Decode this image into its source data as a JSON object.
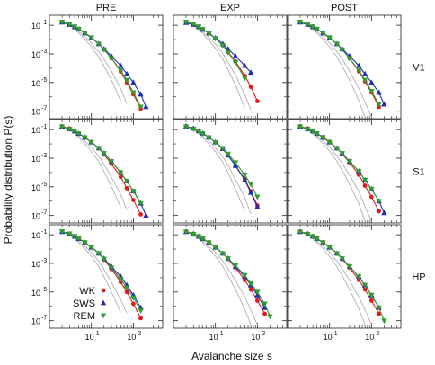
{
  "chart_data": {
    "type": "scatter",
    "layout": "3x3 grid of log-log panels",
    "column_titles": [
      "PRE",
      "EXP",
      "POST"
    ],
    "row_labels": [
      "V1",
      "S1",
      "HP"
    ],
    "xlabel": "Avalanche size s",
    "ylabel": "Probability distribution P(s)",
    "x_scale": "log",
    "y_scale": "log",
    "xlim": [
      1,
      500
    ],
    "ylim": [
      3e-08,
      0.5
    ],
    "x_ticks": [
      {
        "value": 10,
        "label": "10",
        "exp": "1"
      },
      {
        "value": 100,
        "label": "10",
        "exp": "2"
      }
    ],
    "y_ticks": [
      {
        "value": 0.1,
        "label": "10",
        "exp": "-1"
      },
      {
        "value": 0.001,
        "label": "10",
        "exp": "-3"
      },
      {
        "value": 1e-05,
        "label": "10",
        "exp": "-5"
      },
      {
        "value": 1e-07,
        "label": "10",
        "exp": "-7"
      }
    ],
    "x": [
      2,
      3,
      4,
      5,
      7,
      10,
      15,
      20,
      30,
      50,
      70,
      100,
      150,
      200
    ],
    "legend": {
      "placement": "bottom-left of HP / PRE panel",
      "entries": [
        {
          "name": "WK",
          "color": "#e41a1c",
          "marker": "circle"
        },
        {
          "name": "SWS",
          "color": "#1f2fb0",
          "marker": "triangle-up"
        },
        {
          "name": "REM",
          "color": "#2e9e2e",
          "marker": "triangle-down"
        }
      ]
    },
    "fit_line_colors": {
      "WK": "#e41a1c",
      "SWS": "#1f2fb0",
      "REM": "#2e9e2e",
      "surrogate": "#b0b0b0"
    },
    "panels": [
      {
        "row": "V1",
        "col": "PRE",
        "series": [
          {
            "name": "WK",
            "values": [
              0.17,
              0.12,
              0.08,
              0.055,
              0.03,
              0.014,
              0.005,
              0.002,
              0.0005,
              6e-05,
              1e-05,
              1.5e-06,
              1.5e-07,
              null
            ]
          },
          {
            "name": "SWS",
            "values": [
              0.16,
              0.11,
              0.075,
              0.052,
              0.028,
              0.013,
              0.005,
              0.0022,
              0.0007,
              0.00015,
              4e-05,
              1e-05,
              1.5e-06,
              2e-07
            ]
          },
          {
            "name": "REM",
            "values": [
              0.17,
              0.12,
              0.08,
              0.055,
              0.03,
              0.014,
              0.005,
              0.002,
              0.0005,
              7e-05,
              1.5e-05,
              2e-06,
              2e-07,
              null
            ]
          }
        ]
      },
      {
        "row": "V1",
        "col": "EXP",
        "series": [
          {
            "name": "WK",
            "values": [
              0.17,
              0.12,
              0.08,
              0.052,
              0.027,
              0.012,
              0.004,
              0.0014,
              0.0003,
              3e-05,
              5e-06,
              5e-07,
              null,
              null
            ]
          },
          {
            "name": "SWS",
            "values": [
              0.15,
              0.11,
              0.075,
              0.05,
              0.028,
              0.013,
              0.005,
              0.0022,
              0.0007,
              0.00015,
              5e-05,
              null,
              null,
              null
            ]
          },
          {
            "name": "REM",
            "values": [
              0.17,
              0.12,
              0.08,
              0.052,
              0.027,
              0.012,
              0.004,
              0.0013,
              0.00025,
              2e-05,
              null,
              null,
              null,
              null
            ]
          }
        ]
      },
      {
        "row": "V1",
        "col": "POST",
        "series": [
          {
            "name": "WK",
            "values": [
              0.17,
              0.12,
              0.08,
              0.055,
              0.03,
              0.014,
              0.005,
              0.002,
              0.0005,
              6e-05,
              1.2e-05,
              2e-06,
              2e-07,
              null
            ]
          },
          {
            "name": "SWS",
            "values": [
              0.16,
              0.11,
              0.075,
              0.052,
              0.028,
              0.013,
              0.005,
              0.0022,
              0.0007,
              0.00015,
              4e-05,
              1e-05,
              2e-06,
              3e-07
            ]
          },
          {
            "name": "REM",
            "values": [
              0.17,
              0.12,
              0.08,
              0.055,
              0.03,
              0.014,
              0.005,
              0.002,
              0.0005,
              7e-05,
              1.5e-05,
              2.5e-06,
              3e-07,
              null
            ]
          }
        ]
      },
      {
        "row": "S1",
        "col": "PRE",
        "series": [
          {
            "name": "WK",
            "values": [
              0.17,
              0.12,
              0.08,
              0.054,
              0.029,
              0.013,
              0.005,
              0.0018,
              0.0004,
              5e-05,
              8e-06,
              1.2e-06,
              1.2e-07,
              null
            ]
          },
          {
            "name": "SWS",
            "values": [
              0.16,
              0.11,
              0.077,
              0.052,
              0.028,
              0.013,
              0.005,
              0.0022,
              0.0006,
              0.0001,
              2.5e-05,
              5e-06,
              7e-07,
              1e-07
            ]
          },
          {
            "name": "REM",
            "values": [
              0.16,
              0.11,
              0.077,
              0.052,
              0.028,
              0.013,
              0.005,
              0.0022,
              0.0006,
              0.0001,
              2.5e-05,
              5e-06,
              7e-07,
              null
            ]
          }
        ]
      },
      {
        "row": "S1",
        "col": "EXP",
        "series": [
          {
            "name": "WK",
            "values": [
              0.17,
              0.12,
              0.08,
              0.054,
              0.029,
              0.013,
              0.0045,
              0.0016,
              0.0003,
              3.5e-05,
              5e-06,
              5e-07,
              null,
              null
            ]
          },
          {
            "name": "SWS",
            "values": [
              0.17,
              0.12,
              0.08,
              0.054,
              0.029,
              0.013,
              0.0045,
              0.0016,
              0.0003,
              3e-05,
              4e-06,
              4e-07,
              null,
              null
            ]
          },
          {
            "name": "REM",
            "values": [
              0.16,
              0.11,
              0.077,
              0.052,
              0.028,
              0.013,
              0.005,
              0.002,
              0.0005,
              7e-05,
              1.5e-05,
              2e-06,
              null,
              null
            ]
          }
        ]
      },
      {
        "row": "S1",
        "col": "POST",
        "series": [
          {
            "name": "WK",
            "values": [
              0.17,
              0.12,
              0.08,
              0.055,
              0.03,
              0.014,
              0.005,
              0.002,
              0.0005,
              7e-05,
              1.2e-05,
              2e-06,
              2e-07,
              null
            ]
          },
          {
            "name": "SWS",
            "values": [
              0.16,
              0.11,
              0.077,
              0.052,
              0.028,
              0.013,
              0.005,
              0.0022,
              0.0006,
              0.00012,
              3e-05,
              7e-06,
              1e-06,
              1.5e-07
            ]
          },
          {
            "name": "REM",
            "values": [
              0.16,
              0.11,
              0.077,
              0.052,
              0.028,
              0.013,
              0.005,
              0.0022,
              0.0006,
              0.00012,
              3e-05,
              7e-06,
              1e-06,
              null
            ]
          }
        ]
      },
      {
        "row": "HP",
        "col": "PRE",
        "series": [
          {
            "name": "WK",
            "values": [
              0.17,
              0.12,
              0.08,
              0.055,
              0.03,
              0.014,
              0.005,
              0.0018,
              0.0004,
              5e-05,
              1e-05,
              1.5e-06,
              1.5e-07,
              null
            ]
          },
          {
            "name": "SWS",
            "values": [
              0.16,
              0.11,
              0.077,
              0.052,
              0.028,
              0.013,
              0.005,
              0.0022,
              0.0006,
              0.00012,
              3e-05,
              6e-06,
              8e-07,
              null
            ]
          },
          {
            "name": "REM",
            "values": [
              0.17,
              0.12,
              0.08,
              0.054,
              0.029,
              0.013,
              0.005,
              0.002,
              0.0005,
              8e-05,
              2e-05,
              4e-06,
              5e-07,
              null
            ]
          }
        ]
      },
      {
        "row": "HP",
        "col": "EXP",
        "series": [
          {
            "name": "WK",
            "values": [
              0.17,
              0.12,
              0.08,
              0.055,
              0.03,
              0.014,
              0.005,
              0.002,
              0.0005,
              7e-05,
              1.5e-05,
              2.5e-06,
              3e-07,
              null
            ]
          },
          {
            "name": "SWS",
            "values": [
              0.16,
              0.11,
              0.077,
              0.052,
              0.028,
              0.013,
              0.005,
              0.0022,
              0.0006,
              0.00012,
              3e-05,
              6e-06,
              8e-07,
              null
            ]
          },
          {
            "name": "REM",
            "values": [
              0.16,
              0.11,
              0.077,
              0.052,
              0.028,
              0.013,
              0.005,
              0.0022,
              0.0007,
              0.00015,
              4e-05,
              1e-05,
              1.5e-06,
              2e-07
            ]
          }
        ]
      },
      {
        "row": "HP",
        "col": "POST",
        "series": [
          {
            "name": "WK",
            "values": [
              0.17,
              0.12,
              0.08,
              0.055,
              0.03,
              0.014,
              0.005,
              0.002,
              0.0005,
              7e-05,
              1.5e-05,
              2.5e-06,
              3e-07,
              null
            ]
          },
          {
            "name": "SWS",
            "values": [
              0.16,
              0.11,
              0.077,
              0.052,
              0.028,
              0.013,
              0.005,
              0.0022,
              0.0006,
              0.00012,
              3e-05,
              6e-06,
              8e-07,
              null
            ]
          },
          {
            "name": "REM",
            "values": [
              0.16,
              0.11,
              0.077,
              0.052,
              0.028,
              0.013,
              0.005,
              0.0022,
              0.0006,
              0.00012,
              3e-05,
              6e-06,
              8e-07,
              1e-07
            ]
          }
        ]
      }
    ]
  }
}
